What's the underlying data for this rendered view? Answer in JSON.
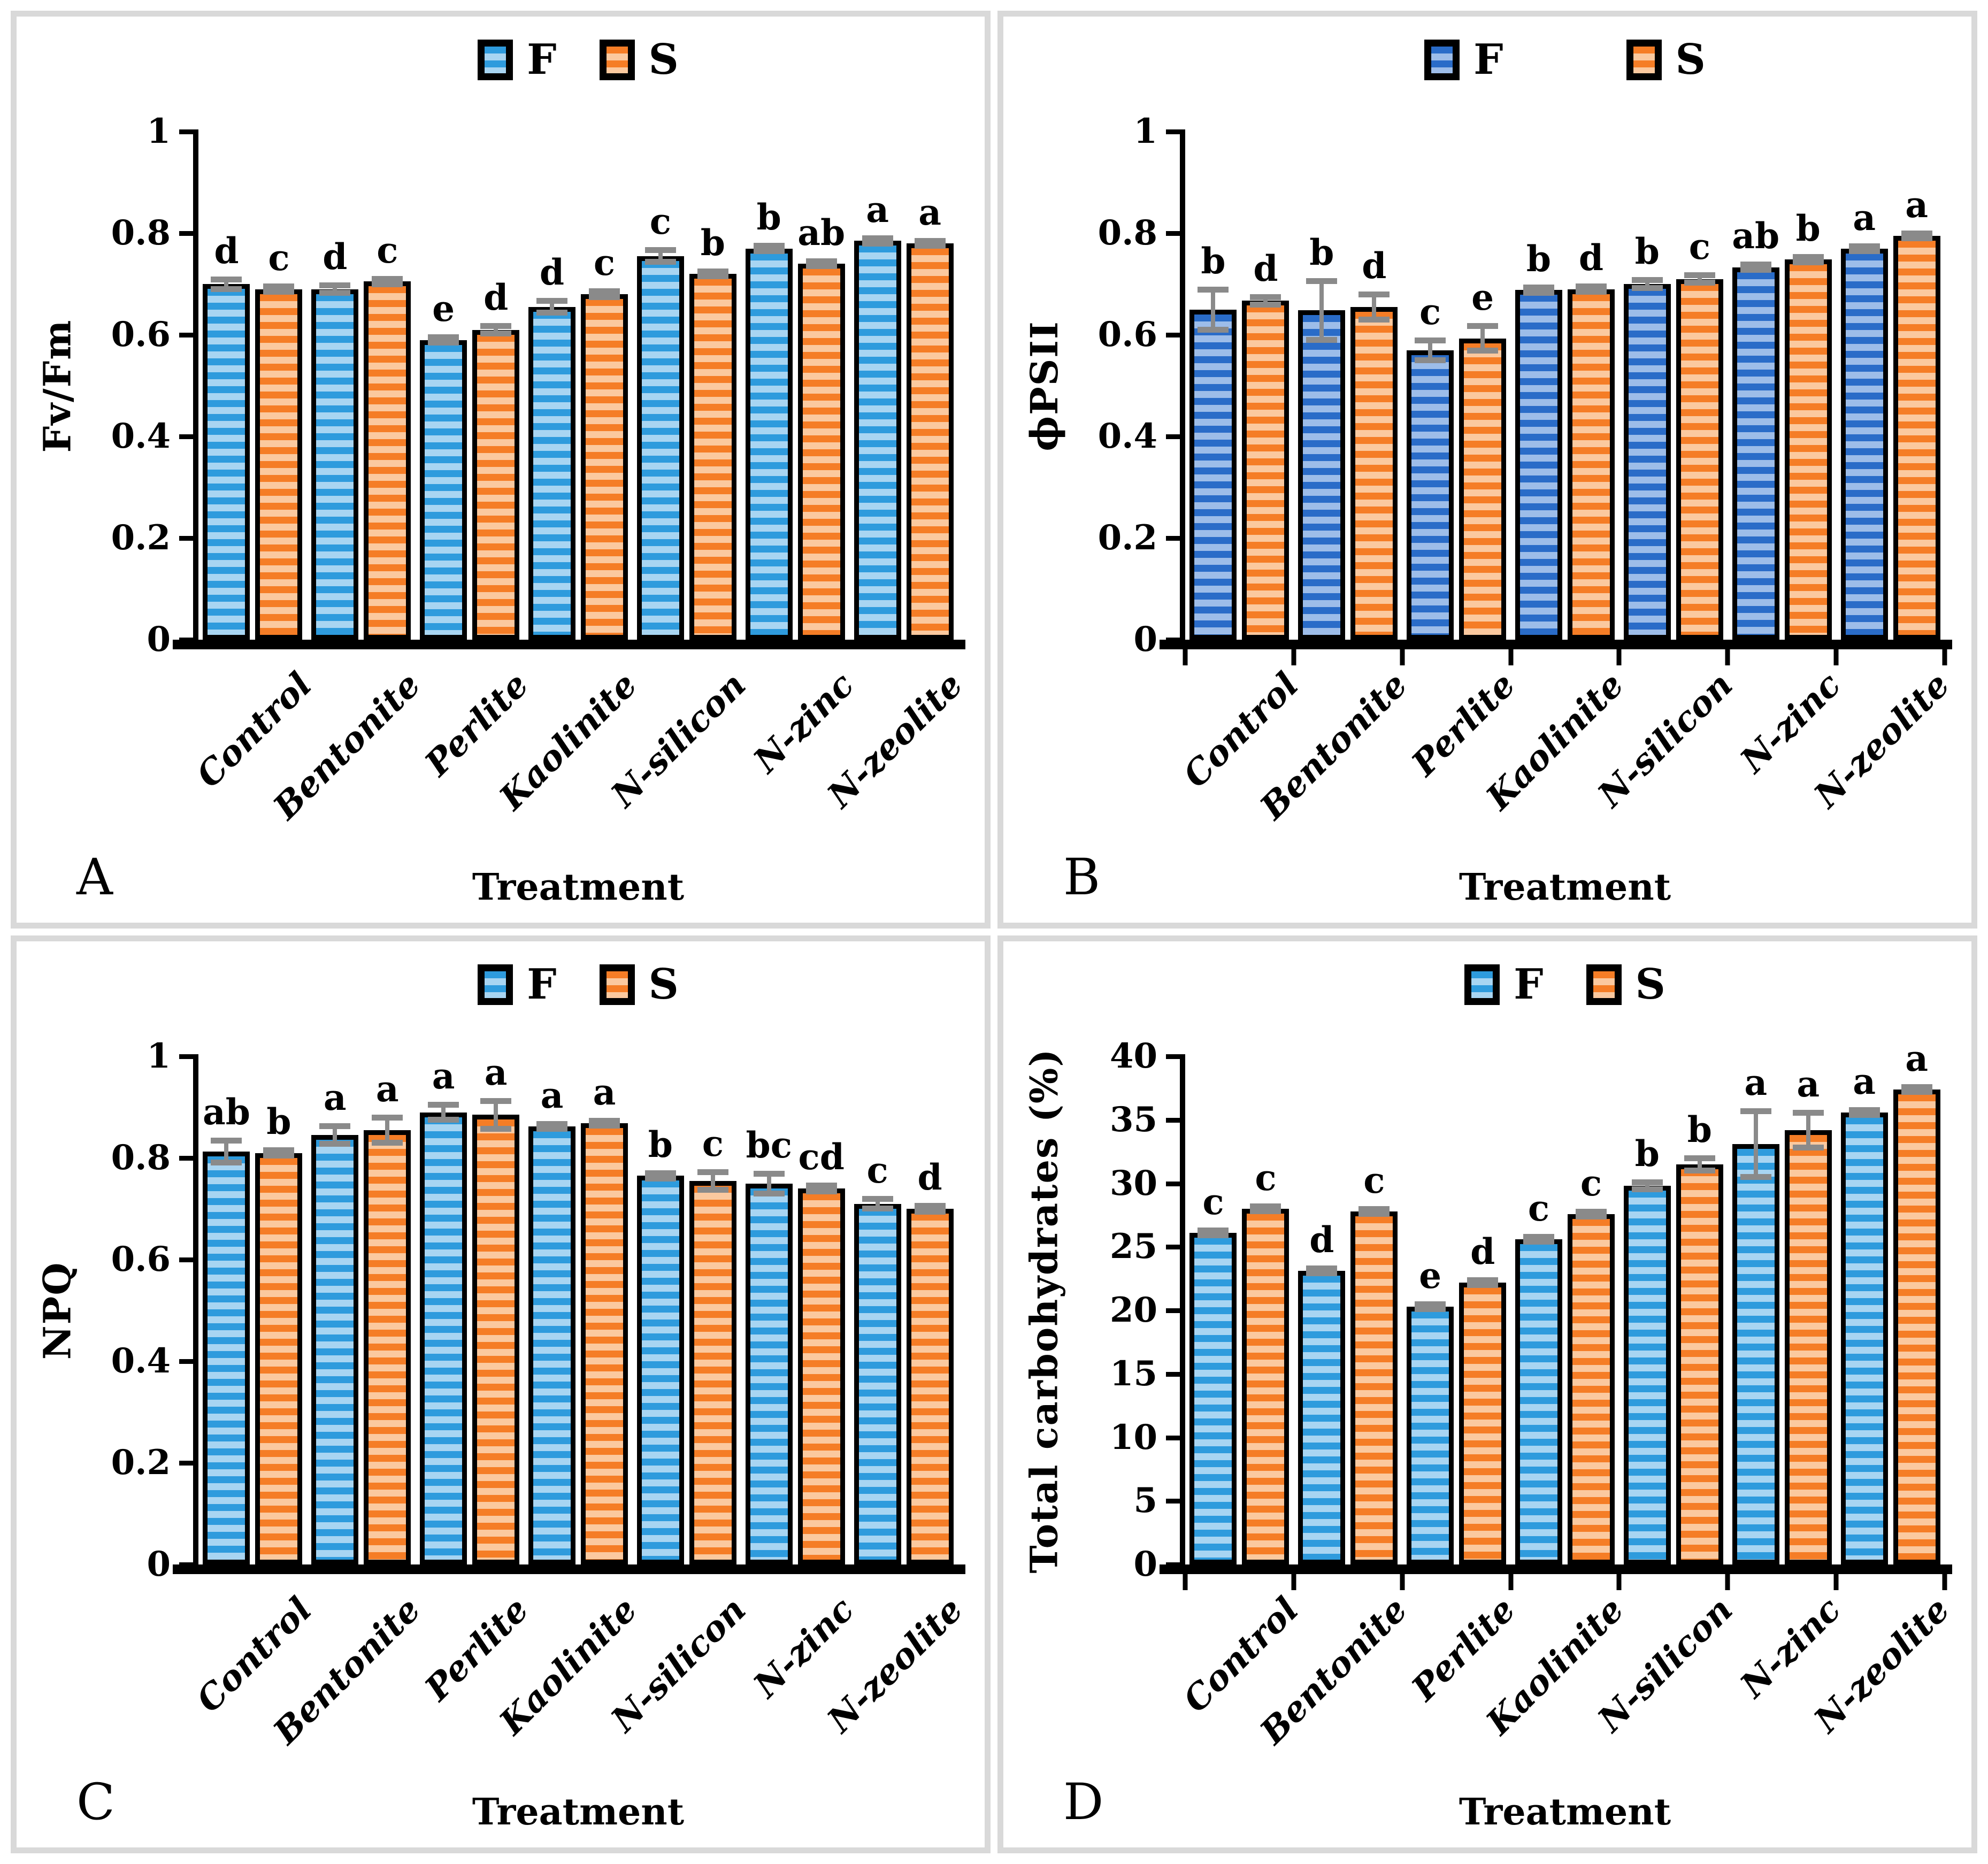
{
  "colors": {
    "blue_light": {
      "dark": "#2e9bdd",
      "light": "#a8d5f2"
    },
    "blue_dark": {
      "dark": "#2a6cc8",
      "light": "#9dbde9"
    },
    "orange": {
      "dark": "#f57d26",
      "light": "#fbc99f"
    },
    "error_bar": "#8a8a8a",
    "panel_border": "#d9d9d9",
    "axis": "#000000"
  },
  "chart_data": [
    {
      "type": "bar",
      "panel": "A",
      "title": "",
      "ylabel": "Fv/Fm",
      "xlabel": "Treatment",
      "ylim": [
        0,
        1
      ],
      "ytick_values": [
        0,
        0.2,
        0.4,
        0.6,
        0.8,
        1
      ],
      "ytick_labels": [
        "0",
        "0.2",
        "0.4",
        "0.6",
        "0.8",
        "1"
      ],
      "grid": false,
      "legend_position": "top",
      "x_axis_ticks": false,
      "categories": [
        "Control",
        "Bentonite",
        "Perlite",
        "Kaolinite",
        "N-silicon",
        "N-zinc",
        "N-zeolite"
      ],
      "series": [
        {
          "name": "F",
          "palette": "blue_light",
          "values": [
            0.7,
            0.69,
            0.59,
            0.655,
            0.755,
            0.77,
            0.785
          ],
          "errors": [
            0.01,
            0.008,
            0.006,
            0.012,
            0.012,
            0.006,
            0.006
          ],
          "sig_letters": [
            "d",
            "d",
            "e",
            "d",
            "c",
            "b",
            "a"
          ]
        },
        {
          "name": "S",
          "palette": "orange",
          "values": [
            0.69,
            0.705,
            0.61,
            0.68,
            0.72,
            0.74,
            0.78
          ],
          "errors": [
            0.006,
            0.006,
            0.008,
            0.006,
            0.005,
            0.005,
            0.005
          ],
          "sig_letters": [
            "c",
            "c",
            "d",
            "c",
            "b",
            "ab",
            "a"
          ]
        }
      ]
    },
    {
      "type": "bar",
      "panel": "B",
      "title": "",
      "ylabel": "ϕPSII",
      "xlabel": "Treatment",
      "ylim": [
        0,
        1
      ],
      "ytick_values": [
        0,
        0.2,
        0.4,
        0.6,
        0.8,
        1
      ],
      "ytick_labels": [
        "0",
        "0.2",
        "0.4",
        "0.6",
        "0.8",
        "1"
      ],
      "grid": false,
      "legend_position": "top",
      "x_axis_ticks": true,
      "categories": [
        "Control",
        "Bentonite",
        "Perlite",
        "Kaolinite",
        "N-silicon",
        "N-zinc",
        "N-zeolite"
      ],
      "series": [
        {
          "name": "F",
          "palette": "blue_dark",
          "values": [
            0.65,
            0.648,
            0.57,
            0.688,
            0.7,
            0.733,
            0.77
          ],
          "errors": [
            0.04,
            0.058,
            0.02,
            0.006,
            0.008,
            0.006,
            0.005
          ],
          "sig_letters": [
            "b",
            "b",
            "c",
            "b",
            "b",
            "ab",
            "a"
          ]
        },
        {
          "name": "S",
          "palette": "orange",
          "values": [
            0.667,
            0.655,
            0.593,
            0.69,
            0.71,
            0.748,
            0.795
          ],
          "errors": [
            0.008,
            0.025,
            0.025,
            0.006,
            0.008,
            0.006,
            0.005
          ],
          "sig_letters": [
            "d",
            "d",
            "e",
            "d",
            "c",
            "b",
            "a"
          ]
        }
      ]
    },
    {
      "type": "bar",
      "panel": "C",
      "title": "",
      "ylabel": "NPQ",
      "xlabel": "Treatment",
      "ylim": [
        0,
        1
      ],
      "ytick_values": [
        0,
        0.2,
        0.4,
        0.6,
        0.8,
        1
      ],
      "ytick_labels": [
        "0",
        "0.2",
        "0.4",
        "0.6",
        "0.8",
        "1"
      ],
      "grid": false,
      "legend_position": "top",
      "x_axis_ticks": false,
      "categories": [
        "Control",
        "Bentonite",
        "Perlite",
        "Kaolinite",
        "N-silicon",
        "N-zinc",
        "N-zeolite"
      ],
      "series": [
        {
          "name": "F",
          "palette": "blue_light",
          "values": [
            0.813,
            0.845,
            0.89,
            0.862,
            0.765,
            0.75,
            0.71
          ],
          "errors": [
            0.022,
            0.018,
            0.015,
            0.005,
            0.006,
            0.02,
            0.01
          ],
          "sig_letters": [
            "ab",
            "a",
            "a",
            "a",
            "b",
            "bc",
            "c"
          ]
        },
        {
          "name": "S",
          "palette": "orange",
          "values": [
            0.81,
            0.855,
            0.885,
            0.868,
            0.755,
            0.74,
            0.7
          ],
          "errors": [
            0.006,
            0.025,
            0.028,
            0.005,
            0.018,
            0.006,
            0.006
          ],
          "sig_letters": [
            "b",
            "a",
            "a",
            "a",
            "c",
            "cd",
            "d"
          ]
        }
      ]
    },
    {
      "type": "bar",
      "panel": "D",
      "title": "",
      "ylabel": "Total carbohydrates (%)",
      "xlabel": "Treatment",
      "ylim": [
        0,
        40
      ],
      "ytick_values": [
        0,
        5,
        10,
        15,
        20,
        25,
        30,
        35,
        40
      ],
      "ytick_labels": [
        "0",
        "5",
        "10",
        "15",
        "20",
        "25",
        "30",
        "35",
        "40"
      ],
      "grid": false,
      "legend_position": "top",
      "x_axis_ticks": true,
      "categories": [
        "Control",
        "Bentonite",
        "Perlite",
        "Kaolinite",
        "N-silicon",
        "N-zinc",
        "N-zeolite"
      ],
      "series": [
        {
          "name": "F",
          "palette": "blue_light",
          "values": [
            26.1,
            23.1,
            20.3,
            25.6,
            29.8,
            33.1,
            35.6
          ],
          "errors": [
            0.2,
            0.2,
            0.2,
            0.2,
            0.3,
            2.6,
            0.2
          ],
          "sig_letters": [
            "c",
            "d",
            "e",
            "c",
            "b",
            "a",
            "a"
          ]
        },
        {
          "name": "S",
          "palette": "orange",
          "values": [
            28.0,
            27.8,
            22.2,
            27.6,
            31.5,
            34.2,
            37.4
          ],
          "errors": [
            0.2,
            0.2,
            0.2,
            0.2,
            0.5,
            1.4,
            0.2
          ],
          "sig_letters": [
            "c",
            "c",
            "d",
            "c",
            "b",
            "a",
            "a"
          ]
        }
      ]
    }
  ]
}
